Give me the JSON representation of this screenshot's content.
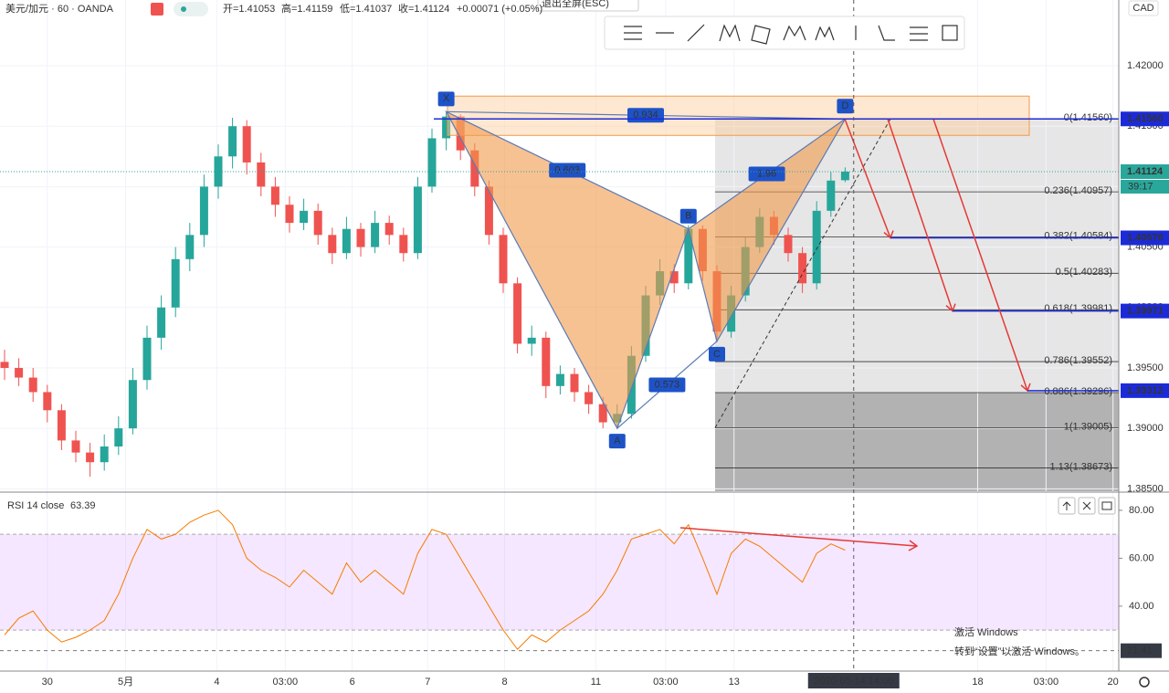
{
  "chart_data": {
    "type": "candlestick",
    "header": {
      "symbol": "美元/加元 · 60 · OANDA",
      "open": "开=1.41053",
      "high": "高=1.41159",
      "low": "低=1.41037",
      "close": "收=1.41124",
      "change": "+0.00071 (+0.05%)"
    },
    "tooltip": "退出全屏(ESC)",
    "currency": "CAD",
    "ylim": [
      1.3848,
      1.42544
    ],
    "yticks": [
      {
        "value": 1.42,
        "label": "1.42000"
      },
      {
        "value": 1.415,
        "label": "1.41500"
      },
      {
        "value": 1.41,
        "label": "1.41000"
      },
      {
        "value": 1.405,
        "label": "1.40500"
      },
      {
        "value": 1.4,
        "label": "1.40000"
      },
      {
        "value": 1.395,
        "label": "1.39500"
      },
      {
        "value": 1.39,
        "label": "1.39000"
      },
      {
        "value": 1.385,
        "label": "1.38500"
      }
    ],
    "candles": [
      [
        1.3955,
        1.3965,
        1.394,
        1.395
      ],
      [
        1.395,
        1.3958,
        1.3935,
        1.3942
      ],
      [
        1.3942,
        1.395,
        1.3922,
        1.393
      ],
      [
        1.393,
        1.3936,
        1.3905,
        1.3915
      ],
      [
        1.3915,
        1.392,
        1.3882,
        1.389
      ],
      [
        1.389,
        1.3898,
        1.3872,
        1.388
      ],
      [
        1.388,
        1.3888,
        1.386,
        1.3872
      ],
      [
        1.3872,
        1.3895,
        1.3865,
        1.3885
      ],
      [
        1.3885,
        1.391,
        1.3878,
        1.39
      ],
      [
        1.39,
        1.395,
        1.3895,
        1.394
      ],
      [
        1.394,
        1.3985,
        1.3932,
        1.3975
      ],
      [
        1.3975,
        1.401,
        1.3965,
        1.4
      ],
      [
        1.4,
        1.405,
        1.3992,
        1.404
      ],
      [
        1.404,
        1.407,
        1.403,
        1.406
      ],
      [
        1.406,
        1.411,
        1.405,
        1.41
      ],
      [
        1.41,
        1.4135,
        1.409,
        1.4125
      ],
      [
        1.4125,
        1.4157,
        1.4115,
        1.415
      ],
      [
        1.415,
        1.4155,
        1.411,
        1.412
      ],
      [
        1.412,
        1.4128,
        1.4092,
        1.41
      ],
      [
        1.41,
        1.4108,
        1.4075,
        1.4085
      ],
      [
        1.4085,
        1.4092,
        1.4062,
        1.407
      ],
      [
        1.407,
        1.409,
        1.4064,
        1.408
      ],
      [
        1.408,
        1.4086,
        1.4052,
        1.406
      ],
      [
        1.406,
        1.4066,
        1.4036,
        1.4045
      ],
      [
        1.4045,
        1.4075,
        1.404,
        1.4065
      ],
      [
        1.4065,
        1.407,
        1.4042,
        1.405
      ],
      [
        1.405,
        1.408,
        1.4045,
        1.407
      ],
      [
        1.407,
        1.4076,
        1.4052,
        1.406
      ],
      [
        1.406,
        1.4066,
        1.4038,
        1.4045
      ],
      [
        1.4045,
        1.4108,
        1.404,
        1.41
      ],
      [
        1.41,
        1.4148,
        1.4095,
        1.414
      ],
      [
        1.414,
        1.4162,
        1.413,
        1.4158
      ],
      [
        1.4158,
        1.416,
        1.4122,
        1.413
      ],
      [
        1.413,
        1.4136,
        1.4092,
        1.41
      ],
      [
        1.41,
        1.4105,
        1.4052,
        1.406
      ],
      [
        1.406,
        1.4066,
        1.4012,
        1.402
      ],
      [
        1.402,
        1.4025,
        1.3962,
        1.397
      ],
      [
        1.397,
        1.3985,
        1.396,
        1.3975
      ],
      [
        1.3975,
        1.398,
        1.3925,
        1.3935
      ],
      [
        1.3935,
        1.3952,
        1.3928,
        1.3945
      ],
      [
        1.3945,
        1.395,
        1.3922,
        1.393
      ],
      [
        1.393,
        1.3936,
        1.3912,
        1.392
      ],
      [
        1.392,
        1.3926,
        1.39,
        1.3905
      ],
      [
        1.3905,
        1.392,
        1.39,
        1.3912
      ],
      [
        1.3912,
        1.3968,
        1.3908,
        1.396
      ],
      [
        1.396,
        1.4018,
        1.3955,
        1.401
      ],
      [
        1.401,
        1.404,
        1.4002,
        1.403
      ],
      [
        1.403,
        1.4036,
        1.4012,
        1.402
      ],
      [
        1.402,
        1.4068,
        1.4015,
        1.4065
      ],
      [
        1.4065,
        1.4068,
        1.4022,
        1.403
      ],
      [
        1.403,
        1.4035,
        1.3972,
        1.398
      ],
      [
        1.398,
        1.4018,
        1.3975,
        1.401
      ],
      [
        1.401,
        1.4058,
        1.4005,
        1.405
      ],
      [
        1.405,
        1.4082,
        1.4045,
        1.4075
      ],
      [
        1.4075,
        1.408,
        1.4052,
        1.406
      ],
      [
        1.406,
        1.4066,
        1.4038,
        1.4045
      ],
      [
        1.4045,
        1.405,
        1.4012,
        1.402
      ],
      [
        1.402,
        1.4088,
        1.4015,
        1.408
      ],
      [
        1.408,
        1.4112,
        1.4075,
        1.4105
      ],
      [
        1.41053,
        1.41159,
        1.41037,
        1.41124
      ]
    ],
    "pattern": [
      {
        "label": "X",
        "index": 31,
        "price": 1.4162
      },
      {
        "label": "A",
        "index": 43,
        "price": 1.39
      },
      {
        "label": "B",
        "index": 48,
        "price": 1.4065
      },
      {
        "label": "C",
        "index": 50,
        "price": 1.3972
      },
      {
        "label": "D",
        "index": 59,
        "price": 1.4156
      }
    ],
    "ratios": {
      "xd": "0.934",
      "xb": "0.603",
      "bd": "1.96",
      "ac": "0.573"
    },
    "fib_levels": [
      {
        "value": 1.4156,
        "label": "0(1.41560)"
      },
      {
        "value": 1.40957,
        "label": "0.236(1.40957)"
      },
      {
        "value": 1.40584,
        "label": "0.382(1.40584)"
      },
      {
        "value": 1.40283,
        "label": "0.5(1.40283)"
      },
      {
        "value": 1.39981,
        "label": "0.618(1.39981)"
      },
      {
        "value": 1.39552,
        "label": "0.786(1.39552)"
      },
      {
        "value": 1.39296,
        "label": "0.886(1.39296)"
      },
      {
        "value": 1.39005,
        "label": "1(1.39005)"
      },
      {
        "value": 1.38673,
        "label": "1.13(1.38673)"
      }
    ],
    "price_tags": [
      {
        "value": 1.4156,
        "label": "1.41560",
        "color": "#1c2bd8"
      },
      {
        "value": 1.41124,
        "label": "1.41124",
        "color": "#2aa79b"
      },
      {
        "value": 1.40576,
        "label": "1.40576",
        "color": "#1c2bd8"
      },
      {
        "value": 1.39971,
        "label": "1.39971",
        "color": "#1c2bd8"
      },
      {
        "value": 1.39312,
        "label": "1.39312",
        "color": "#1c2bd8"
      }
    ],
    "countdown": "39:17",
    "time_labels": [
      {
        "index": 3,
        "label": "30"
      },
      {
        "index": 8.5,
        "label": "5月"
      },
      {
        "index": 14.9,
        "label": "4"
      },
      {
        "index": 19.7,
        "label": "03:00"
      },
      {
        "index": 24.4,
        "label": "6"
      },
      {
        "index": 29.7,
        "label": "7"
      },
      {
        "index": 35.1,
        "label": "8"
      },
      {
        "index": 41.5,
        "label": "11"
      },
      {
        "index": 46.4,
        "label": "03:00"
      },
      {
        "index": 51.2,
        "label": "13"
      },
      {
        "index": 68.3,
        "label": "18"
      },
      {
        "index": 73.1,
        "label": "03:00"
      },
      {
        "index": 77.8,
        "label": "20"
      }
    ],
    "crosshair": {
      "index": 59.6,
      "label": "2020-05-14  14:00"
    },
    "rsi": {
      "title": "RSI 14 close",
      "ylim": [
        12.9,
        85.3
      ],
      "yticks": [
        {
          "value": 80,
          "label": "80.00"
        },
        {
          "value": 60,
          "label": "60.00"
        },
        {
          "value": 40,
          "label": "40.00"
        }
      ],
      "band": [
        30,
        70
      ],
      "values": [
        28,
        35,
        38,
        30,
        25,
        27,
        30,
        34,
        45,
        60,
        72,
        68,
        70,
        75,
        78,
        80,
        74,
        60,
        55,
        52,
        48,
        55,
        50,
        45,
        58,
        50,
        55,
        50,
        45,
        62,
        72,
        70,
        60,
        50,
        40,
        30,
        22,
        28,
        25,
        30,
        34,
        38,
        45,
        55,
        68,
        70,
        72,
        66,
        74,
        60,
        45,
        62,
        68,
        65,
        60,
        55,
        50,
        62,
        66,
        63.39
      ],
      "cursor": {
        "value": 21.41,
        "label": "21.41"
      }
    },
    "watermark": {
      "title": "激活 Windows",
      "text": "转到“设置”以激活 Windows。"
    }
  }
}
